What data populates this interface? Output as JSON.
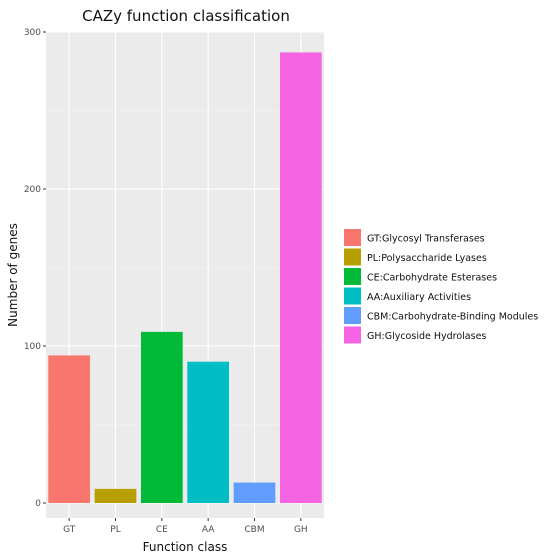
{
  "chart_data": {
    "type": "bar",
    "title": "CAZy function classification",
    "xlabel": "Function class",
    "ylabel": "Number of genes",
    "categories": [
      "GT",
      "PL",
      "CE",
      "AA",
      "CBM",
      "GH"
    ],
    "values": [
      94,
      9,
      109,
      90,
      13,
      287
    ],
    "colors": [
      "#F8766D",
      "#B79F00",
      "#00BA38",
      "#00BFC4",
      "#619CFF",
      "#F564E3"
    ],
    "ylim": [
      0,
      300
    ],
    "yticks": [
      0,
      100,
      200,
      300
    ],
    "grid": true,
    "panel_background": "#EBEBEB",
    "legend": {
      "position": "right",
      "entries": [
        "GT:Glycosyl Transferases",
        "PL:Polysaccharide Lyases",
        "CE:Carbohydrate Esterases",
        "AA:Auxiliary Activities",
        "CBM:Carbohydrate-Binding Modules",
        "GH:Glycoside Hydrolases"
      ]
    }
  }
}
